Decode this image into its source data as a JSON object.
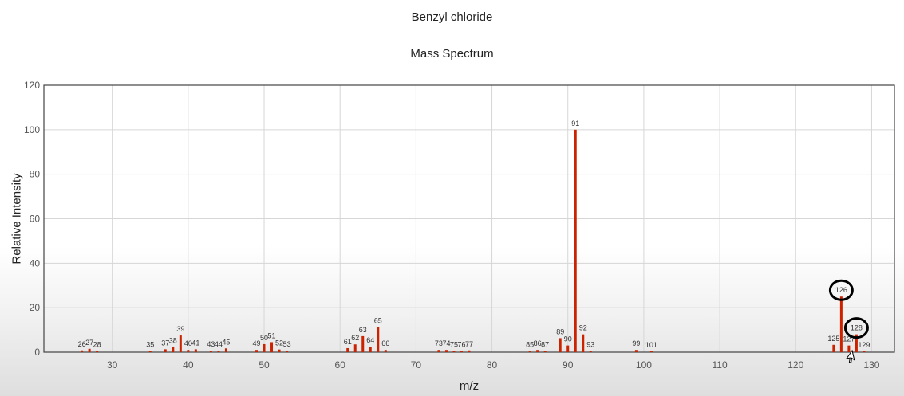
{
  "chart_data": {
    "type": "bar",
    "title": "Benzyl chloride",
    "subtitle": "Mass Spectrum",
    "xlabel": "m/z",
    "ylabel": "Relative Intensity",
    "xlim": [
      21,
      133
    ],
    "ylim": [
      0,
      120
    ],
    "xticks": [
      30,
      40,
      50,
      60,
      70,
      80,
      90,
      100,
      110,
      120,
      130
    ],
    "yticks": [
      0,
      20,
      40,
      60,
      80,
      100,
      120
    ],
    "grid": true,
    "bar_color": "#cc2200",
    "peaks": [
      {
        "x": 26,
        "y": 0.8
      },
      {
        "x": 27,
        "y": 1.5
      },
      {
        "x": 28,
        "y": 0.6
      },
      {
        "x": 35,
        "y": 0.6
      },
      {
        "x": 37,
        "y": 1.3
      },
      {
        "x": 38,
        "y": 2.4
      },
      {
        "x": 39,
        "y": 7.5
      },
      {
        "x": 40,
        "y": 1.0
      },
      {
        "x": 41,
        "y": 1.3
      },
      {
        "x": 43,
        "y": 0.7
      },
      {
        "x": 44,
        "y": 0.7
      },
      {
        "x": 45,
        "y": 1.7
      },
      {
        "x": 49,
        "y": 1.0
      },
      {
        "x": 50,
        "y": 3.6
      },
      {
        "x": 51,
        "y": 4.5
      },
      {
        "x": 52,
        "y": 1.2
      },
      {
        "x": 53,
        "y": 0.7
      },
      {
        "x": 61,
        "y": 1.8
      },
      {
        "x": 62,
        "y": 3.5
      },
      {
        "x": 63,
        "y": 7.2
      },
      {
        "x": 64,
        "y": 2.5
      },
      {
        "x": 65,
        "y": 11.3
      },
      {
        "x": 66,
        "y": 1.0
      },
      {
        "x": 73,
        "y": 1.0
      },
      {
        "x": 74,
        "y": 1.0
      },
      {
        "x": 75,
        "y": 0.6
      },
      {
        "x": 76,
        "y": 0.6
      },
      {
        "x": 77,
        "y": 0.8
      },
      {
        "x": 85,
        "y": 0.6
      },
      {
        "x": 86,
        "y": 1.0
      },
      {
        "x": 87,
        "y": 0.6
      },
      {
        "x": 89,
        "y": 6.3
      },
      {
        "x": 90,
        "y": 3.0
      },
      {
        "x": 91,
        "y": 100
      },
      {
        "x": 92,
        "y": 8.0
      },
      {
        "x": 93,
        "y": 0.6
      },
      {
        "x": 99,
        "y": 1.0
      },
      {
        "x": 101,
        "y": 0.4
      },
      {
        "x": 125,
        "y": 3.3
      },
      {
        "x": 126,
        "y": 25.0
      },
      {
        "x": 127,
        "y": 3.0
      },
      {
        "x": 128,
        "y": 8.0
      },
      {
        "x": 129,
        "y": 0.4
      }
    ],
    "annotations": [
      {
        "type": "hand-drawn-circle",
        "target": 126
      },
      {
        "type": "hand-drawn-circle",
        "target": 128
      }
    ]
  }
}
